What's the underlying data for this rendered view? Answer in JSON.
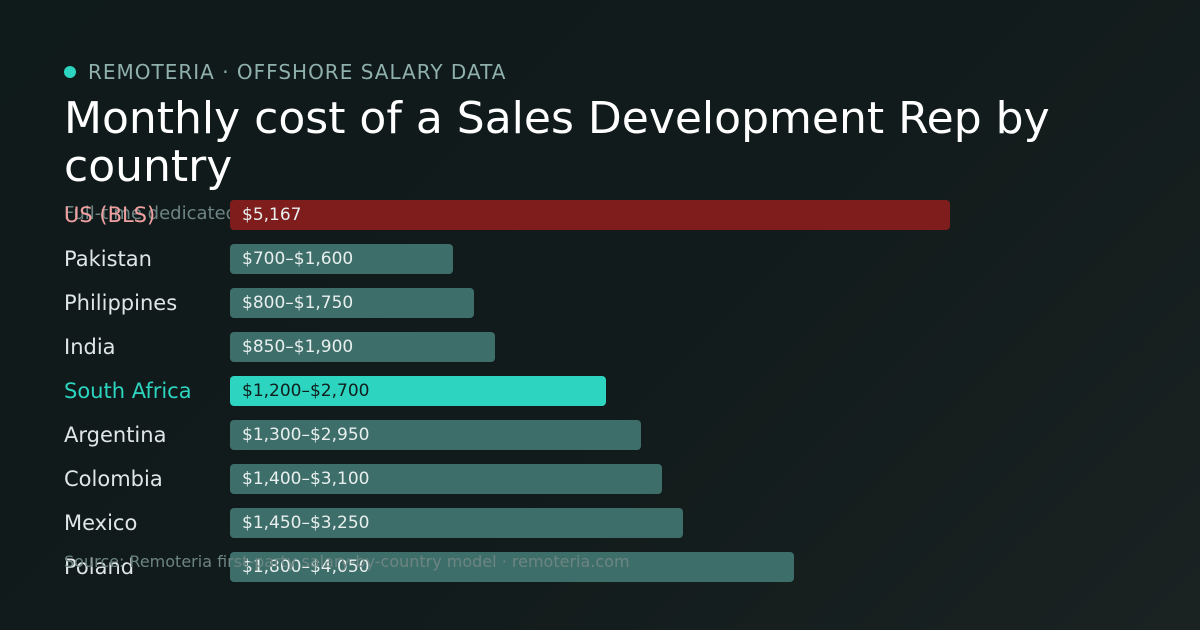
{
  "header": {
    "brand": "REMOTERIA · OFFSHORE SALARY DATA",
    "title": "Monthly cost of a Sales Development Rep by country",
    "subtitle": "Full-time dedicated",
    "source": "Source: Remoteria first-party salary-by-country model · remoteria.com"
  },
  "colors": {
    "brand_dot": "#2dd4bf",
    "us_bar": "#7f1d1d",
    "us_label": "#f0a0a0",
    "default_bar": "#3e6e6a",
    "highlight_bar": "#2dd4bf",
    "highlight_label": "#2dd4bf"
  },
  "chart_data": {
    "type": "bar",
    "orientation": "horizontal",
    "unit": "USD per month",
    "xlim": [
      0,
      5167
    ],
    "categories": [
      "US (BLS)",
      "Pakistan",
      "Philippines",
      "India",
      "South Africa",
      "Argentina",
      "Colombia",
      "Mexico",
      "Poland"
    ],
    "ranges": [
      [
        5167,
        5167
      ],
      [
        700,
        1600
      ],
      [
        800,
        1750
      ],
      [
        850,
        1900
      ],
      [
        1200,
        2700
      ],
      [
        1300,
        2950
      ],
      [
        1400,
        3100
      ],
      [
        1450,
        3250
      ],
      [
        1800,
        4050
      ]
    ],
    "value_labels": [
      "$5,167",
      "$700–$1,600",
      "$800–$1,750",
      "$850–$1,900",
      "$1,200–$2,700",
      "$1,300–$2,950",
      "$1,400–$3,100",
      "$1,450–$3,250",
      "$1,800–$4,050"
    ],
    "styles": [
      "benchmark",
      "default",
      "default",
      "default",
      "highlight",
      "default",
      "default",
      "default",
      "default"
    ]
  }
}
